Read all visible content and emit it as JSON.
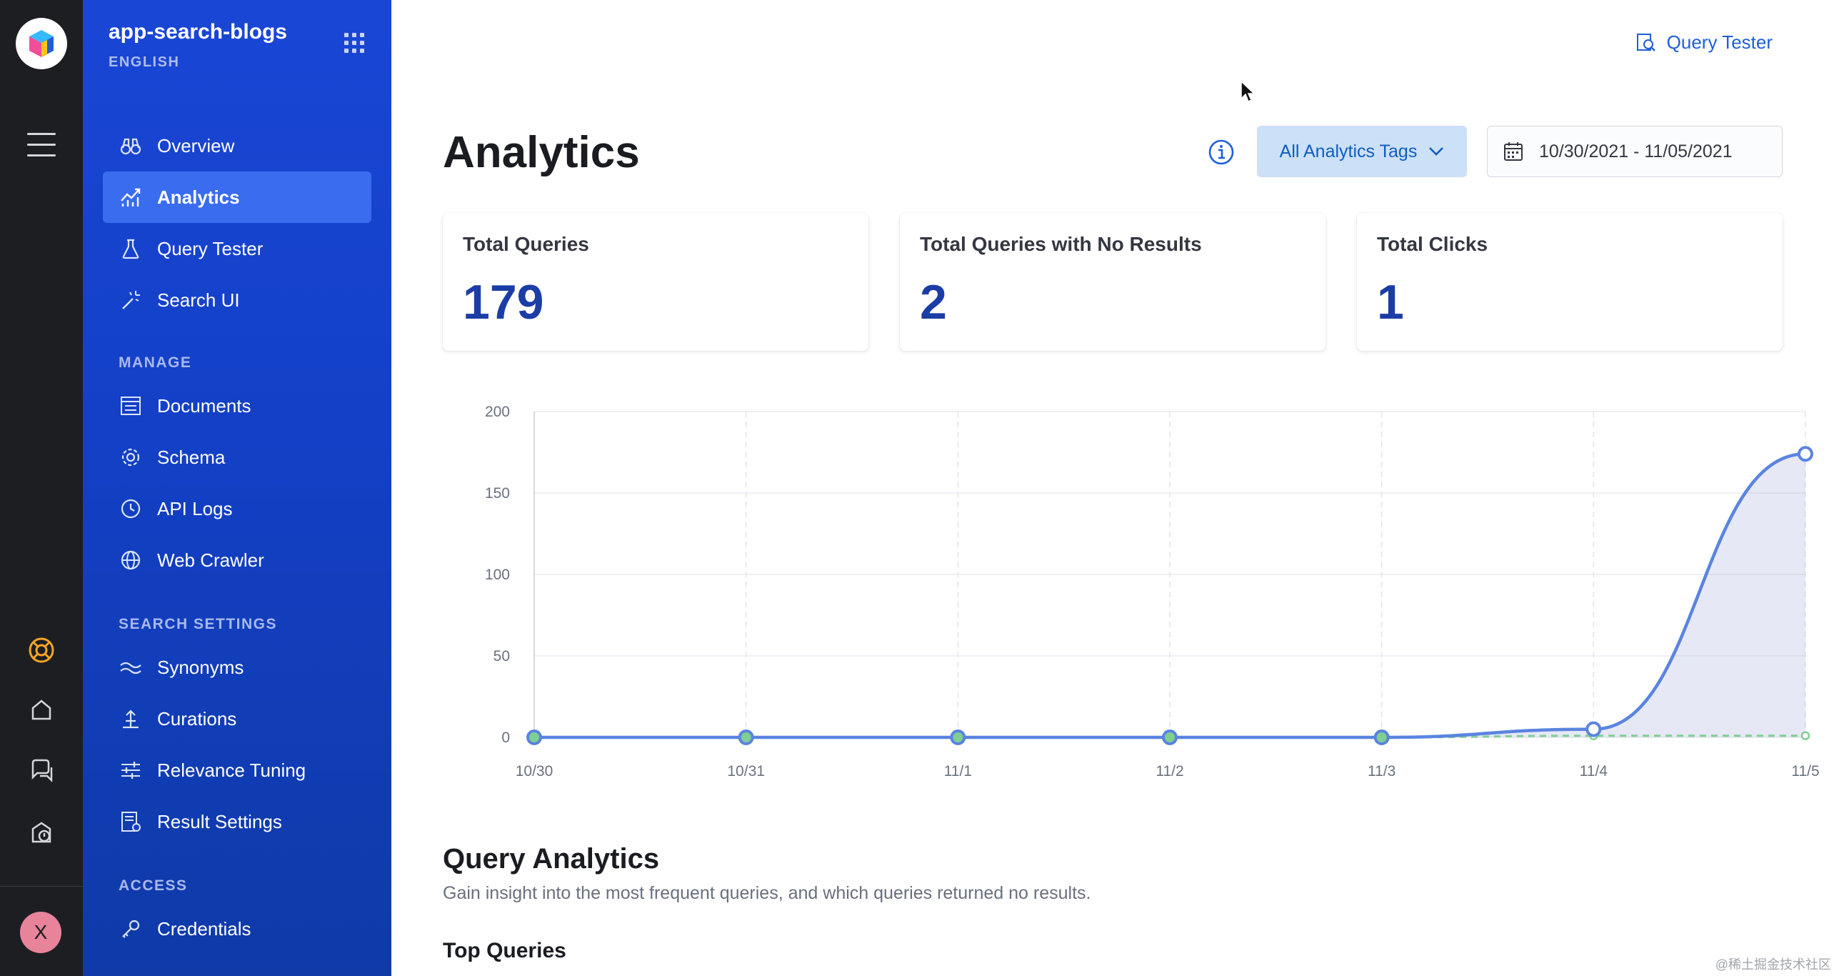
{
  "app": {
    "name": "app-search-blogs",
    "language": "ENGLISH"
  },
  "sidebar": {
    "items": [
      {
        "label": "Overview",
        "icon": "binoculars-icon",
        "active": false
      },
      {
        "label": "Analytics",
        "icon": "analytics-icon",
        "active": true
      },
      {
        "label": "Query Tester",
        "icon": "flask-icon",
        "active": false
      },
      {
        "label": "Search UI",
        "icon": "magic-wand-icon",
        "active": false
      }
    ],
    "sections": [
      {
        "title": "MANAGE",
        "items": [
          {
            "label": "Documents",
            "icon": "documents-icon"
          },
          {
            "label": "Schema",
            "icon": "gear-icon"
          },
          {
            "label": "API Logs",
            "icon": "clock-icon"
          },
          {
            "label": "Web Crawler",
            "icon": "globe-icon"
          }
        ]
      },
      {
        "title": "SEARCH SETTINGS",
        "items": [
          {
            "label": "Synonyms",
            "icon": "synonyms-icon"
          },
          {
            "label": "Curations",
            "icon": "curations-icon"
          },
          {
            "label": "Relevance Tuning",
            "icon": "sliders-icon"
          },
          {
            "label": "Result Settings",
            "icon": "result-settings-icon"
          }
        ]
      },
      {
        "title": "ACCESS",
        "items": [
          {
            "label": "Credentials",
            "icon": "key-icon"
          }
        ]
      }
    ]
  },
  "rail": {
    "avatar_initial": "X",
    "accent_help": "#f5a623"
  },
  "header": {
    "query_tester_link": "Query Tester"
  },
  "page": {
    "title": "Analytics",
    "tags_filter": "All Analytics Tags",
    "date_range": "10/30/2021 - 11/05/2021"
  },
  "stats": [
    {
      "title": "Total Queries",
      "value": "179"
    },
    {
      "title": "Total Queries with No Results",
      "value": "2"
    },
    {
      "title": "Total Clicks",
      "value": "1"
    }
  ],
  "chart_data": {
    "type": "line",
    "x": [
      "10/30",
      "10/31",
      "11/1",
      "11/2",
      "11/3",
      "11/4",
      "11/5"
    ],
    "ylim": [
      0,
      200
    ],
    "yticks": [
      0,
      50,
      100,
      150,
      200
    ],
    "grid": true,
    "series": [
      {
        "values": [
          0,
          0,
          0,
          0,
          0,
          5,
          174
        ],
        "color": "#5a84e0",
        "style": "solid-area"
      },
      {
        "values": [
          0,
          0,
          0,
          0,
          0,
          1,
          1
        ],
        "color": "#7fcf92",
        "style": "dashed"
      }
    ]
  },
  "query_analytics": {
    "title": "Query Analytics",
    "subtitle": "Gain insight into the most frequent queries, and which queries returned no results.",
    "top_queries_title": "Top Queries"
  },
  "watermark": "@稀土掘金技术社区"
}
